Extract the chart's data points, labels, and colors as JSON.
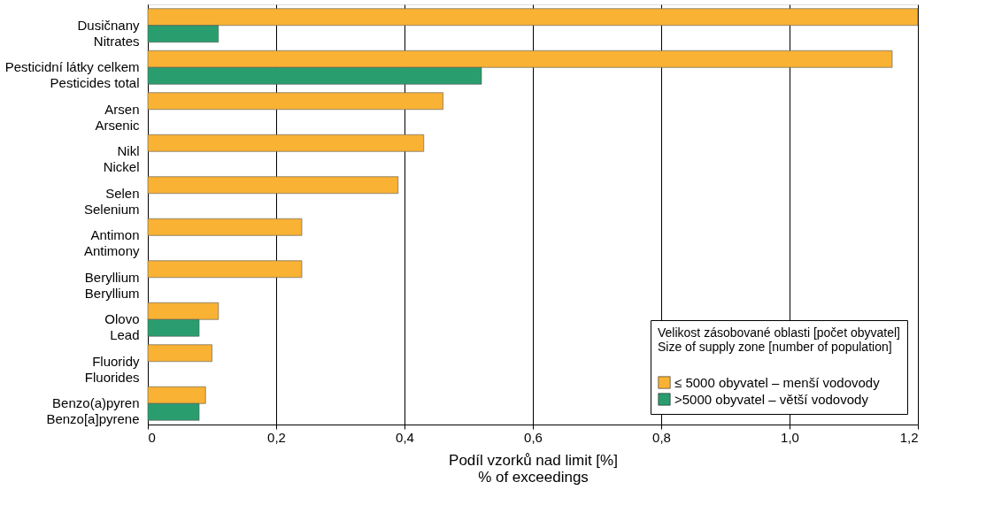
{
  "chart_data": {
    "type": "bar",
    "orientation": "horizontal",
    "categories": [
      "Dusičnany\nNitrates",
      "Pesticidní látky celkem\nPesticides total",
      "Arsen\nArsenic",
      "Nikl\nNickel",
      "Selen\nSelenium",
      "Antimon\nAntimony",
      "Beryllium\nBeryllium",
      "Olovo\nLead",
      "Fluoridy\nFluorides",
      "Benzo(a)pyren\nBenzo[a]pyrene"
    ],
    "series": [
      {
        "name": "≤ 5000 obyvatel – menší vodovody",
        "color": "#f9b233",
        "values": [
          1.2,
          1.16,
          0.46,
          0.43,
          0.39,
          0.24,
          0.24,
          0.11,
          0.1,
          0.09
        ]
      },
      {
        "name": ">5000 obyvatel – větší vodovody",
        "color": "#2a9d6e",
        "values": [
          0.11,
          0.52,
          null,
          null,
          null,
          null,
          null,
          0.08,
          null,
          0.08
        ]
      }
    ],
    "xlabel": "Podíl vzorků nad limit [%]\n% of exceedings",
    "legend_title": "Velikost zásobované oblasti [počet obyvatel]\nSize of supply zone [number of population]",
    "xlim": [
      0,
      1.2
    ],
    "xticks": [
      0,
      {
        "value": 0.2,
        "label": "0,2"
      },
      {
        "value": 0.4,
        "label": "0,4"
      },
      {
        "value": 0.6,
        "label": "0,6"
      },
      {
        "value": 0.8,
        "label": "0,8"
      },
      {
        "value": 1.0,
        "label": "1,0"
      },
      {
        "value": 1.2,
        "label": "1,2"
      }
    ],
    "grid": "x",
    "legend": "bottom right"
  }
}
